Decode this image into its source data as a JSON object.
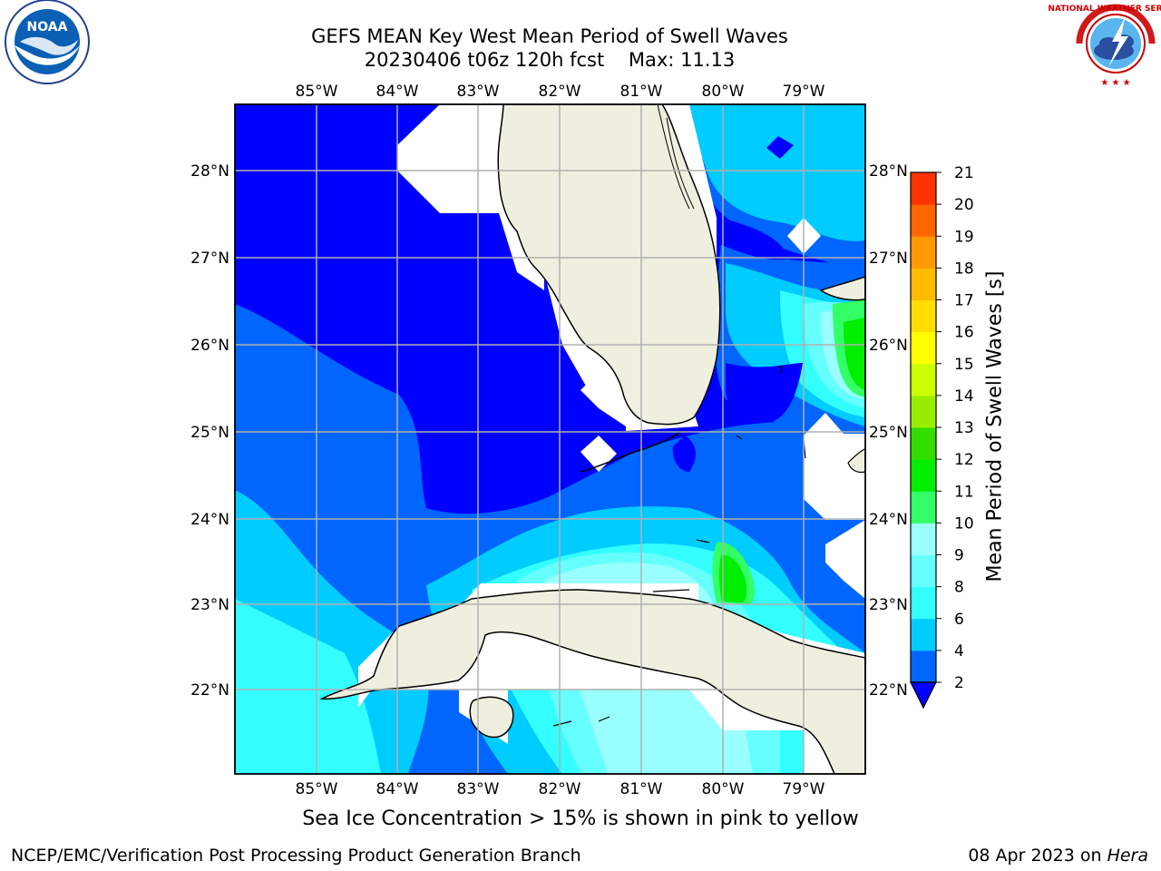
{
  "title": {
    "line1": "GEFS MEAN Key West Mean Period of Swell Waves",
    "line2_prefix": "20230406 t06z 120h fcst",
    "max_label": "Max:",
    "max_value": "11.13"
  },
  "logos": {
    "left": {
      "icon": "noaa-logo-icon",
      "text": "NOAA"
    },
    "right": {
      "icon": "nws-logo-icon",
      "text": "NATIONAL WEATHER SERVICE"
    }
  },
  "map": {
    "lon_ticks": [
      "85°W",
      "84°W",
      "83°W",
      "82°W",
      "81°W",
      "80°W",
      "79°W"
    ],
    "lat_ticks": [
      "28°N",
      "27°N",
      "26°N",
      "25°N",
      "24°N",
      "23°N",
      "22°N"
    ],
    "lon_range": [
      -86.0,
      -78.25
    ],
    "lat_range": [
      21.05,
      28.8
    ],
    "land_color": "#efefdf",
    "grid_color": "#b0b0b0"
  },
  "colorbar": {
    "label": "Mean Period of Swell Waves [s]",
    "ticks": [
      "2",
      "4",
      "6",
      "8",
      "9",
      "10",
      "11",
      "12",
      "13",
      "14",
      "15",
      "16",
      "17",
      "18",
      "19",
      "20",
      "21"
    ],
    "colors": [
      "#0066ff",
      "#00ccff",
      "#33ffff",
      "#66ffff",
      "#99ffff",
      "#33ff66",
      "#00ee00",
      "#33dd00",
      "#99ee00",
      "#ccff00",
      "#ffff00",
      "#ffdd00",
      "#ffbb00",
      "#ff9900",
      "#ff6600",
      "#ff3300"
    ],
    "under_color": "#0000ff"
  },
  "footer": {
    "note": "Sea Ice Concentration > 15% is shown in pink to yellow",
    "credit_left": "NCEP/EMC/Verification Post Processing Product Generation Branch",
    "date": "08 Apr 2023 on",
    "host": "Hera"
  }
}
